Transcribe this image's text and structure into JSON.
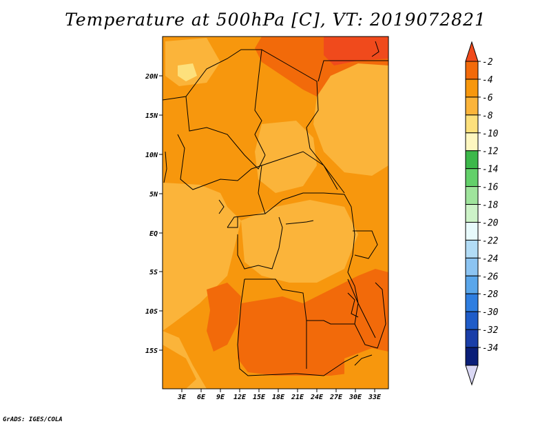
{
  "title": "Temperature at 500hPa [C], VT: 2019072821",
  "footer": "GrADS: IGES/COLA",
  "map": {
    "lat_ticks": [
      "20N",
      "15N",
      "10N",
      "5N",
      "EQ",
      "5S",
      "10S",
      "15S"
    ],
    "lon_ticks": [
      "3E",
      "6E",
      "9E",
      "12E",
      "15E",
      "18E",
      "21E",
      "24E",
      "27E",
      "30E",
      "33E"
    ]
  },
  "colorbar": {
    "labels": [
      "-2",
      "-4",
      "-6",
      "-8",
      "-10",
      "-12",
      "-14",
      "-16",
      "-18",
      "-20",
      "-22",
      "-24",
      "-26",
      "-28",
      "-30",
      "-32",
      "-34"
    ],
    "colors": [
      "#f04a1c",
      "#f26a0a",
      "#f7970d",
      "#fbb43a",
      "#fde07c",
      "#fef7c0",
      "#3cb84a",
      "#63d06a",
      "#9fe49c",
      "#cdf3c8",
      "#e8fafc",
      "#b2dcf6",
      "#8cc4f2",
      "#5aa6ea",
      "#2f7ee0",
      "#1f5cc8",
      "#1a3ea8",
      "#0a1e78",
      "#dad8f4"
    ]
  },
  "colors": {
    "warm": "#f26a0a",
    "orange": "#f7970d",
    "light": "#fbb43a",
    "pale": "#fde07c",
    "hot": "#f04a1c"
  }
}
